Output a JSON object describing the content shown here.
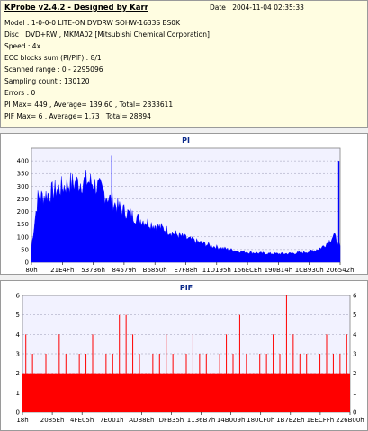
{
  "header": {
    "title": "KProbe v2.4.2 - Designed by Karr",
    "date": "Date : 2004-11-04 02:35:33"
  },
  "info_lines": [
    "Model : 1-0-0-0 LITE-ON DVDRW SOHW-1633S BS0K",
    "Disc : DVD+RW , MKMA02 [Mitsubishi Chemical Corporation]",
    "Speed : 4x",
    "ECC blocks sum (PI/PIF) : 8/1",
    "Scanned range : 0 - 2295096",
    "Sampling count : 130120",
    "Errors : 0",
    "PI Max= 449 , Average= 139,60 , Total= 2333611",
    "PIF Max= 6 , Average= 1,73 , Total= 28894"
  ],
  "colors": {
    "info_bg": "#fffde1",
    "pi_fill": "#0000ff",
    "pif_fill": "#ff0000",
    "plot_bg": "#f2f2ff",
    "title": "#0b2a8a"
  },
  "chart_data": [
    {
      "type": "area",
      "title": "PI",
      "xlabel": "",
      "ylabel": "",
      "ylim": [
        0,
        450
      ],
      "y_ticks": [
        0,
        50,
        100,
        150,
        200,
        250,
        300,
        350,
        400
      ],
      "grid": true,
      "x_tick_labels": [
        "80h",
        "21E4Fh",
        "53736h",
        "84579h",
        "B6850h",
        "E7F88h",
        "11D195h",
        "156ECEh",
        "190B14h",
        "1CB930h",
        "206542h"
      ],
      "series": [
        {
          "values": [
            60,
            260,
            270,
            280,
            295,
            305,
            320,
            320,
            325,
            330,
            320,
            300,
            275,
            250,
            225,
            210,
            195,
            180,
            170,
            160,
            150,
            140,
            130,
            118,
            108,
            98,
            90,
            82,
            75,
            68,
            62,
            57,
            52,
            48,
            44,
            41,
            39,
            37,
            36,
            35,
            35,
            35,
            36,
            38,
            40,
            44,
            50,
            60,
            80,
            110,
            60
          ],
          "peaks": [
            420,
            400
          ]
        }
      ]
    },
    {
      "type": "bar",
      "title": "PIF",
      "xlabel": "",
      "ylabel": "",
      "ylim": [
        0,
        6
      ],
      "y_ticks": [
        0,
        1,
        2,
        3,
        4,
        5,
        6
      ],
      "grid": true,
      "x_tick_labels": [
        "18h",
        "2085Eh",
        "4FE05h",
        "7E001h",
        "ADB8Eh",
        "DFB35h",
        "1136B7h",
        "14B009h",
        "180CF0h",
        "1B7E2Eh",
        "1EECFFh",
        "226B00h"
      ],
      "series": [
        {
          "baseline": 2,
          "values": [
            4,
            3,
            2,
            3,
            2,
            4,
            3,
            2,
            3,
            3,
            4,
            2,
            3,
            3,
            5,
            5,
            4,
            3,
            2,
            3,
            3,
            4,
            3,
            2,
            3,
            4,
            3,
            3,
            2,
            3,
            4,
            3,
            5,
            3,
            2,
            3,
            3,
            4,
            3,
            6,
            4,
            3,
            3,
            2,
            3,
            4,
            3,
            3,
            4
          ]
        }
      ]
    }
  ]
}
